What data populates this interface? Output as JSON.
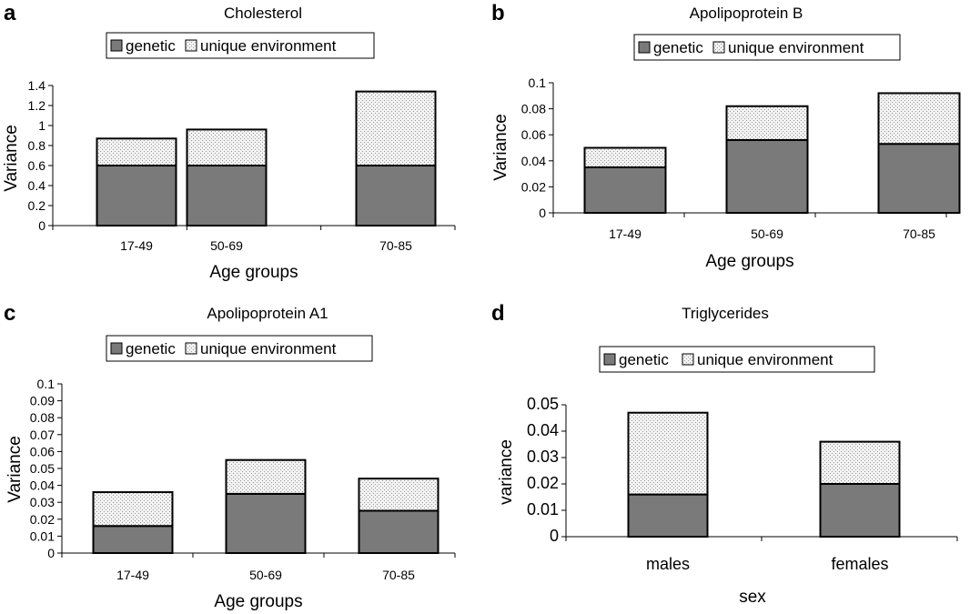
{
  "colors": {
    "genetic": "#7a7a7a",
    "env_pattern": "dotted-light-gray",
    "axis": "#000000"
  },
  "chart_data": [
    {
      "panel": "a",
      "type": "bar",
      "stacked": true,
      "title": "Cholesterol",
      "xlabel": "Age groups",
      "ylabel": "Variance",
      "ylim": [
        0,
        1.4
      ],
      "yticks": [
        "0",
        "0.2",
        "0.4",
        "0.6",
        "0.8",
        "1",
        "1.2",
        "1.4"
      ],
      "categories": [
        "17-49",
        "50-69",
        "70-85"
      ],
      "legend": [
        "genetic",
        "unique environment"
      ],
      "series": [
        {
          "name": "genetic",
          "values": [
            0.6,
            0.6,
            0.6
          ]
        },
        {
          "name": "unique environment",
          "values": [
            0.27,
            0.36,
            0.74
          ]
        }
      ]
    },
    {
      "panel": "b",
      "type": "bar",
      "stacked": true,
      "title": "Apolipoprotein B",
      "xlabel": "Age groups",
      "ylabel": "Variance",
      "ylim": [
        0,
        0.1
      ],
      "yticks": [
        "0",
        "0.02",
        "0.04",
        "0.06",
        "0.08",
        "0.1"
      ],
      "categories": [
        "17-49",
        "50-69",
        "70-85"
      ],
      "legend": [
        "genetic",
        "unique environment"
      ],
      "series": [
        {
          "name": "genetic",
          "values": [
            0.035,
            0.056,
            0.053
          ]
        },
        {
          "name": "unique environment",
          "values": [
            0.015,
            0.026,
            0.039
          ]
        }
      ]
    },
    {
      "panel": "c",
      "type": "bar",
      "stacked": true,
      "title": "Apolipoprotein A1",
      "xlabel": "Age groups",
      "ylabel": "Variance",
      "ylim": [
        0,
        0.1
      ],
      "yticks": [
        "0",
        "0.01",
        "0.02",
        "0.03",
        "0.04",
        "0.05",
        "0.06",
        "0.07",
        "0.08",
        "0.09",
        "0.1"
      ],
      "categories": [
        "17-49",
        "50-69",
        "70-85"
      ],
      "legend": [
        "genetic",
        "unique environment"
      ],
      "series": [
        {
          "name": "genetic",
          "values": [
            0.016,
            0.035,
            0.025
          ]
        },
        {
          "name": "unique environment",
          "values": [
            0.02,
            0.02,
            0.019
          ]
        }
      ]
    },
    {
      "panel": "d",
      "type": "bar",
      "stacked": true,
      "title": "Triglycerides",
      "xlabel": "sex",
      "ylabel": "variance",
      "ylim": [
        0,
        0.05
      ],
      "yticks": [
        "0",
        "0.01",
        "0.02",
        "0.03",
        "0.04",
        "0.05"
      ],
      "categories": [
        "males",
        "females"
      ],
      "legend": [
        "genetic",
        "unique environment"
      ],
      "series": [
        {
          "name": "genetic",
          "values": [
            0.016,
            0.02
          ]
        },
        {
          "name": "unique environment",
          "values": [
            0.031,
            0.016
          ]
        }
      ]
    }
  ]
}
